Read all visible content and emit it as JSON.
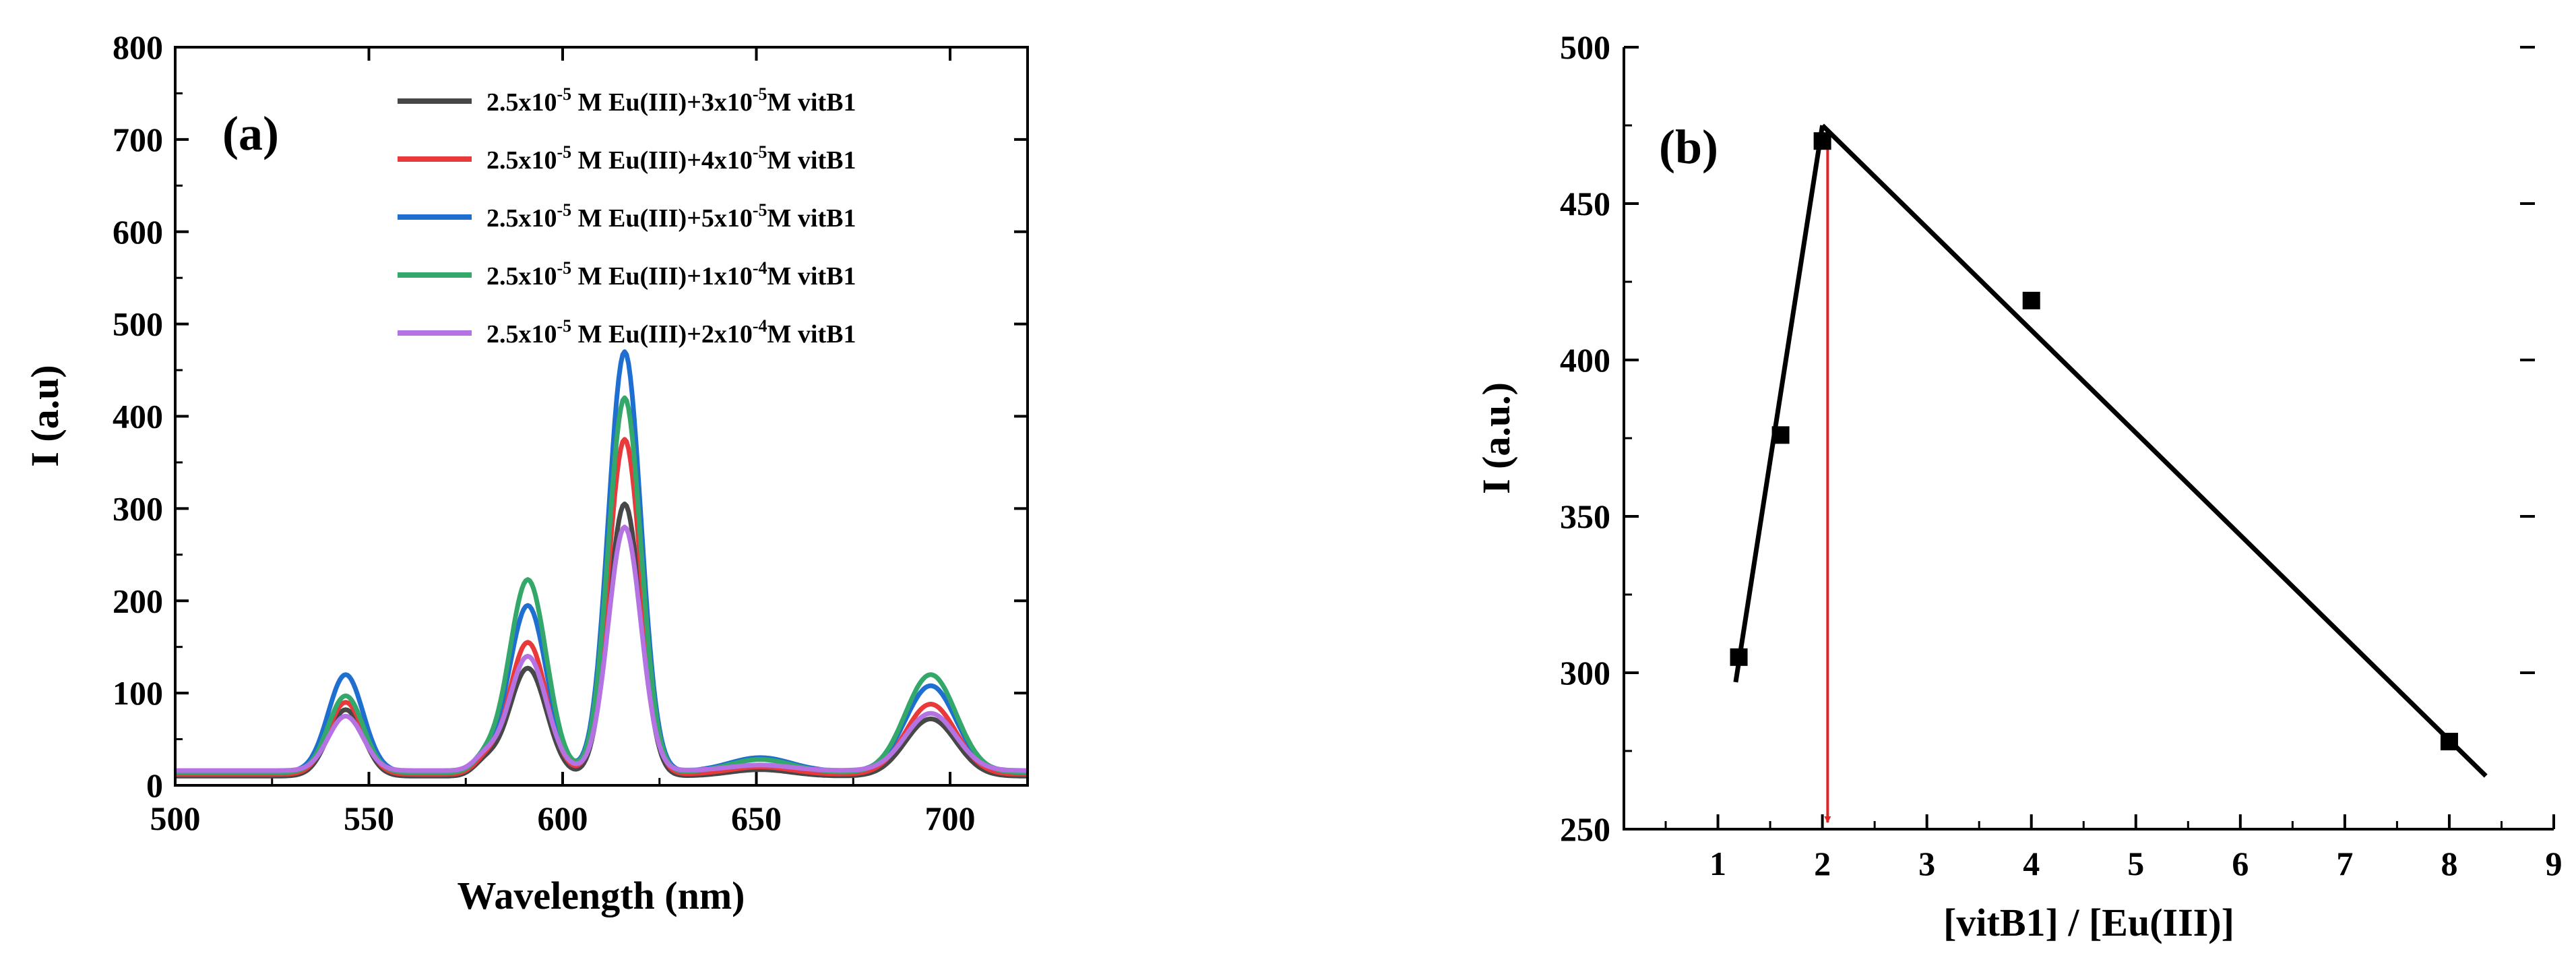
{
  "chart_data": [
    {
      "type": "line",
      "panel_label": "(a)",
      "xlabel": "Wavelength (nm)",
      "ylabel": "I (a.u)",
      "xlim": [
        500,
        720
      ],
      "ylim": [
        0,
        800
      ],
      "xticks": [
        500,
        550,
        600,
        650,
        700
      ],
      "yticks": [
        0,
        100,
        200,
        300,
        400,
        500,
        600,
        700,
        800
      ],
      "legend_position": "top-right",
      "series": [
        {
          "name": "2.5x10-5 M Eu(III)+3x10-5M vitB1",
          "legend": {
            "a": "2.5x10",
            "b": "-5",
            "c": " M Eu(III)+3x10",
            "d": "-5",
            "e": "M vitB1"
          },
          "color": "#474747",
          "baseline": 10,
          "peaks": [
            [
              544,
              82
            ],
            [
              591,
              127
            ],
            [
              616,
              305
            ],
            [
              651,
              17
            ],
            [
              695,
              72
            ]
          ]
        },
        {
          "name": "2.5x10-5 M Eu(III)+4x10-5M vitB1",
          "legend": {
            "a": "2.5x10",
            "b": "-5",
            "c": " M Eu(III)+4x10",
            "d": "-5",
            "e": "M vitB1"
          },
          "color": "#e8393b",
          "baseline": 12,
          "peaks": [
            [
              544,
              90
            ],
            [
              591,
              155
            ],
            [
              616,
              375
            ],
            [
              651,
              20
            ],
            [
              695,
              88
            ]
          ]
        },
        {
          "name": "2.5x10-5 M Eu(III)+5x10-5M vitB1",
          "legend": {
            "a": "2.5x10",
            "b": "-5",
            "c": " M Eu(III)+5x10",
            "d": "-5",
            "e": "M vitB1"
          },
          "color": "#1f6fd1",
          "baseline": 15,
          "peaks": [
            [
              544,
              120
            ],
            [
              591,
              195
            ],
            [
              616,
              470
            ],
            [
              651,
              30
            ],
            [
              695,
              108
            ]
          ]
        },
        {
          "name": "2.5x10-5 M Eu(III)+1x10-4M vitB1",
          "legend": {
            "a": "2.5x10",
            "b": "-5",
            "c": " M Eu(III)+1x10",
            "d": "-4",
            "e": "M vitB1"
          },
          "color": "#34a86b",
          "baseline": 14,
          "peaks": [
            [
              544,
              97
            ],
            [
              591,
              223
            ],
            [
              616,
              420
            ],
            [
              651,
              28
            ],
            [
              695,
              120
            ]
          ]
        },
        {
          "name": "2.5x10-5 M Eu(III)+2x10-4M vitB1",
          "legend": {
            "a": "2.5x10",
            "b": "-5",
            "c": " M Eu(III)+2x10",
            "d": "-4",
            "e": "M vitB1"
          },
          "color": "#b472e2",
          "baseline": 16,
          "peaks": [
            [
              544,
              75
            ],
            [
              591,
              140
            ],
            [
              616,
              280
            ],
            [
              651,
              22
            ],
            [
              695,
              78
            ]
          ]
        }
      ]
    },
    {
      "type": "scatter",
      "panel_label": "(b)",
      "xlabel": "[vitB1] / [Eu(III)]",
      "ylabel": "I (a.u.)",
      "xlim": [
        0.1,
        9
      ],
      "ylim": [
        250,
        500
      ],
      "xticks": [
        1,
        2,
        3,
        4,
        5,
        6,
        7,
        8,
        9
      ],
      "yticks": [
        250,
        300,
        350,
        400,
        450,
        500
      ],
      "points": {
        "x": [
          1.2,
          1.6,
          2.0,
          4.0,
          8.0
        ],
        "y": [
          305,
          376,
          470,
          419,
          278
        ]
      },
      "fit_lines": [
        {
          "x": [
            1.17,
            2.0
          ],
          "y": [
            297,
            475
          ]
        },
        {
          "x": [
            2.0,
            8.35
          ],
          "y": [
            475,
            267
          ]
        }
      ],
      "marker_line": {
        "x": 2.05,
        "y_from": 470,
        "y_to": 250,
        "color": "#e52222"
      }
    }
  ]
}
